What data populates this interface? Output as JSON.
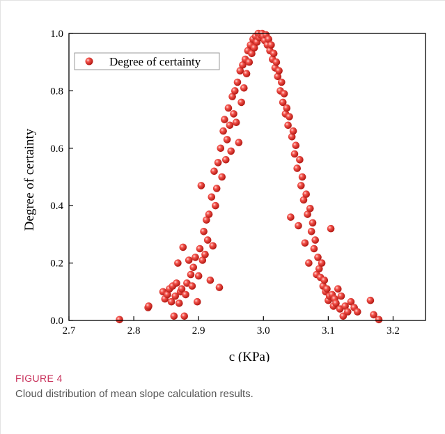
{
  "chart_data": {
    "type": "scatter",
    "xlabel": "c (KPa)",
    "ylabel": "Degree of certainty",
    "xlim": [
      2.7,
      3.25
    ],
    "ylim": [
      0.0,
      1.0
    ],
    "x_ticks": [
      "2.7",
      "2.8",
      "2.9",
      "3.0",
      "3.1",
      "3.2"
    ],
    "y_ticks": [
      "0.0",
      "0.2",
      "0.4",
      "0.6",
      "0.8",
      "1.0"
    ],
    "legend": {
      "position": "top-left",
      "entries": [
        "Degree of certainty"
      ]
    },
    "grid": false,
    "marker_color": "#e8342f",
    "series": [
      {
        "name": "Degree of certainty",
        "points": [
          [
            2.778,
            0.003
          ],
          [
            2.822,
            0.045
          ],
          [
            2.823,
            0.05
          ],
          [
            2.845,
            0.1
          ],
          [
            2.848,
            0.075
          ],
          [
            2.852,
            0.09
          ],
          [
            2.855,
            0.11
          ],
          [
            2.858,
            0.065
          ],
          [
            2.86,
            0.12
          ],
          [
            2.862,
            0.015
          ],
          [
            2.864,
            0.085
          ],
          [
            2.866,
            0.13
          ],
          [
            2.868,
            0.2
          ],
          [
            2.87,
            0.06
          ],
          [
            2.872,
            0.1
          ],
          [
            2.874,
            0.11
          ],
          [
            2.876,
            0.255
          ],
          [
            2.878,
            0.015
          ],
          [
            2.88,
            0.09
          ],
          [
            2.882,
            0.13
          ],
          [
            2.885,
            0.21
          ],
          [
            2.888,
            0.16
          ],
          [
            2.89,
            0.12
          ],
          [
            2.892,
            0.185
          ],
          [
            2.895,
            0.22
          ],
          [
            2.898,
            0.065
          ],
          [
            2.9,
            0.155
          ],
          [
            2.902,
            0.25
          ],
          [
            2.904,
            0.47
          ],
          [
            2.906,
            0.21
          ],
          [
            2.908,
            0.31
          ],
          [
            2.91,
            0.23
          ],
          [
            2.912,
            0.35
          ],
          [
            2.914,
            0.28
          ],
          [
            2.916,
            0.37
          ],
          [
            2.918,
            0.14
          ],
          [
            2.92,
            0.43
          ],
          [
            2.922,
            0.26
          ],
          [
            2.924,
            0.52
          ],
          [
            2.926,
            0.4
          ],
          [
            2.928,
            0.46
          ],
          [
            2.93,
            0.55
          ],
          [
            2.932,
            0.115
          ],
          [
            2.934,
            0.6
          ],
          [
            2.936,
            0.5
          ],
          [
            2.938,
            0.66
          ],
          [
            2.94,
            0.7
          ],
          [
            2.942,
            0.56
          ],
          [
            2.944,
            0.63
          ],
          [
            2.946,
            0.74
          ],
          [
            2.948,
            0.68
          ],
          [
            2.95,
            0.59
          ],
          [
            2.952,
            0.78
          ],
          [
            2.954,
            0.72
          ],
          [
            2.956,
            0.8
          ],
          [
            2.958,
            0.69
          ],
          [
            2.96,
            0.83
          ],
          [
            2.962,
            0.62
          ],
          [
            2.964,
            0.87
          ],
          [
            2.966,
            0.76
          ],
          [
            2.968,
            0.89
          ],
          [
            2.97,
            0.81
          ],
          [
            2.972,
            0.91
          ],
          [
            2.974,
            0.86
          ],
          [
            2.976,
            0.94
          ],
          [
            2.978,
            0.9
          ],
          [
            2.98,
            0.96
          ],
          [
            2.982,
            0.93
          ],
          [
            2.984,
            0.98
          ],
          [
            2.986,
            0.95
          ],
          [
            2.988,
            0.99
          ],
          [
            2.99,
            0.97
          ],
          [
            2.992,
            1.0
          ],
          [
            2.994,
            0.985
          ],
          [
            2.996,
            0.995
          ],
          [
            2.998,
            1.0
          ],
          [
            3.0,
            0.99
          ],
          [
            3.002,
            0.975
          ],
          [
            3.004,
            0.995
          ],
          [
            3.006,
            0.96
          ],
          [
            3.008,
            0.98
          ],
          [
            3.01,
            0.94
          ],
          [
            3.012,
            0.96
          ],
          [
            3.014,
            0.91
          ],
          [
            3.016,
            0.93
          ],
          [
            3.018,
            0.88
          ],
          [
            3.02,
            0.9
          ],
          [
            3.022,
            0.85
          ],
          [
            3.024,
            0.87
          ],
          [
            3.026,
            0.8
          ],
          [
            3.028,
            0.83
          ],
          [
            3.03,
            0.76
          ],
          [
            3.032,
            0.79
          ],
          [
            3.034,
            0.72
          ],
          [
            3.036,
            0.74
          ],
          [
            3.038,
            0.68
          ],
          [
            3.04,
            0.71
          ],
          [
            3.042,
            0.36
          ],
          [
            3.044,
            0.64
          ],
          [
            3.046,
            0.66
          ],
          [
            3.048,
            0.58
          ],
          [
            3.05,
            0.61
          ],
          [
            3.052,
            0.53
          ],
          [
            3.054,
            0.33
          ],
          [
            3.056,
            0.56
          ],
          [
            3.058,
            0.47
          ],
          [
            3.06,
            0.5
          ],
          [
            3.062,
            0.42
          ],
          [
            3.064,
            0.27
          ],
          [
            3.066,
            0.44
          ],
          [
            3.068,
            0.37
          ],
          [
            3.07,
            0.2
          ],
          [
            3.072,
            0.39
          ],
          [
            3.074,
            0.31
          ],
          [
            3.076,
            0.34
          ],
          [
            3.078,
            0.25
          ],
          [
            3.08,
            0.28
          ],
          [
            3.082,
            0.16
          ],
          [
            3.084,
            0.22
          ],
          [
            3.086,
            0.18
          ],
          [
            3.088,
            0.15
          ],
          [
            3.09,
            0.2
          ],
          [
            3.092,
            0.12
          ],
          [
            3.094,
            0.14
          ],
          [
            3.096,
            0.1
          ],
          [
            3.098,
            0.11
          ],
          [
            3.1,
            0.07
          ],
          [
            3.102,
            0.085
          ],
          [
            3.104,
            0.32
          ],
          [
            3.106,
            0.09
          ],
          [
            3.108,
            0.05
          ],
          [
            3.11,
            0.075
          ],
          [
            3.112,
            0.06
          ],
          [
            3.115,
            0.11
          ],
          [
            3.118,
            0.04
          ],
          [
            3.12,
            0.085
          ],
          [
            3.123,
            0.015
          ],
          [
            3.126,
            0.05
          ],
          [
            3.13,
            0.03
          ],
          [
            3.135,
            0.065
          ],
          [
            3.14,
            0.045
          ],
          [
            3.145,
            0.03
          ],
          [
            3.165,
            0.07
          ],
          [
            3.17,
            0.02
          ],
          [
            3.178,
            0.003
          ]
        ]
      }
    ]
  },
  "caption": {
    "label": "FIGURE 4",
    "text": "Cloud distribution of mean slope calculation results."
  }
}
